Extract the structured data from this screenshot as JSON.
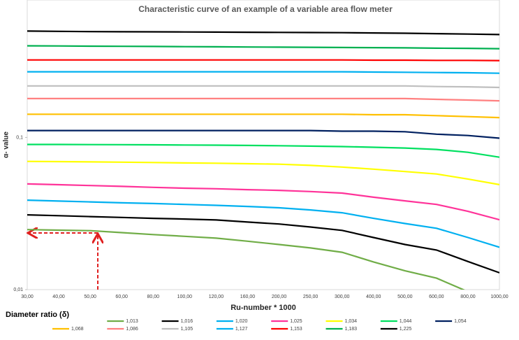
{
  "chart_data": {
    "type": "line",
    "title": "Characteristic curve of an example of a variable area flow meter",
    "x_label": "Ru-number * 1000",
    "y_label": "α- value",
    "legend_title": "Diameter ratio (δ)",
    "log_y": true,
    "categories": [
      "30,00",
      "40,00",
      "50,00",
      "60,00",
      "80,00",
      "100,00",
      "120,00",
      "160,00",
      "200,00",
      "250,00",
      "300,00",
      "400,00",
      "500,00",
      "600,00",
      "800,00",
      "1000,00"
    ],
    "ylim": [
      0.01,
      0.8
    ],
    "yticks": [
      {
        "value": 0.01,
        "label": "0,01"
      },
      {
        "value": 0.1,
        "label": "0,1"
      }
    ],
    "series": [
      {
        "name": "1,013",
        "color": "#70ad47",
        "values": [
          0.0248,
          0.0246,
          0.0244,
          0.0237,
          0.023,
          0.0224,
          0.0218,
          0.0208,
          0.0198,
          0.0188,
          0.0176,
          0.0152,
          0.0133,
          0.0119,
          0.0097,
          null
        ]
      },
      {
        "name": "1,016",
        "color": "#000000",
        "values": [
          0.031,
          0.0306,
          0.0302,
          0.0298,
          0.0294,
          0.0291,
          0.0287,
          0.0278,
          0.027,
          0.0258,
          0.0245,
          0.022,
          0.0198,
          0.0182,
          0.0153,
          0.0129
        ]
      },
      {
        "name": "1,020",
        "color": "#00b0f0",
        "values": [
          0.0387,
          0.0382,
          0.0377,
          0.0372,
          0.0368,
          0.0363,
          0.0358,
          0.0352,
          0.0345,
          0.0334,
          0.032,
          0.0294,
          0.0272,
          0.0253,
          0.022,
          0.019
        ]
      },
      {
        "name": "1,025",
        "color": "#ff3399",
        "values": [
          0.0495,
          0.0489,
          0.0483,
          0.0477,
          0.047,
          0.0464,
          0.046,
          0.0454,
          0.0449,
          0.0441,
          0.0431,
          0.0405,
          0.0383,
          0.0363,
          0.0327,
          0.0288
        ]
      },
      {
        "name": "1,034",
        "color": "#ffff00",
        "values": [
          0.0696,
          0.0694,
          0.0691,
          0.0688,
          0.0684,
          0.068,
          0.0677,
          0.0672,
          0.0667,
          0.0655,
          0.0639,
          0.0619,
          0.0597,
          0.0575,
          0.0533,
          0.049
        ]
      },
      {
        "name": "1,044",
        "color": "#00e060",
        "values": [
          0.0899,
          0.0899,
          0.0897,
          0.0896,
          0.0894,
          0.0892,
          0.089,
          0.0886,
          0.0882,
          0.0877,
          0.0871,
          0.0862,
          0.0852,
          0.0834,
          0.0799,
          0.0742
        ]
      },
      {
        "name": "1,054",
        "color": "#002060",
        "values": [
          0.111,
          0.111,
          0.111,
          0.111,
          0.111,
          0.111,
          0.111,
          0.111,
          0.111,
          0.111,
          0.11,
          0.11,
          0.109,
          0.105,
          0.103,
          0.0989
        ]
      },
      {
        "name": "1,068",
        "color": "#ffc000",
        "values": [
          0.142,
          0.142,
          0.142,
          0.142,
          0.142,
          0.142,
          0.142,
          0.142,
          0.142,
          0.142,
          0.142,
          0.141,
          0.141,
          0.139,
          0.137,
          0.135
        ]
      },
      {
        "name": "1,086",
        "color": "#ff8080",
        "values": [
          0.18,
          0.18,
          0.18,
          0.18,
          0.18,
          0.18,
          0.18,
          0.18,
          0.18,
          0.18,
          0.18,
          0.18,
          0.18,
          0.178,
          0.176,
          0.174
        ]
      },
      {
        "name": "1,105",
        "color": "#bfbfbf",
        "values": [
          0.218,
          0.218,
          0.218,
          0.218,
          0.218,
          0.218,
          0.218,
          0.218,
          0.218,
          0.218,
          0.218,
          0.218,
          0.218,
          0.216,
          0.215,
          0.213
        ]
      },
      {
        "name": "1,127",
        "color": "#00b0f0",
        "values": [
          0.27,
          0.27,
          0.27,
          0.27,
          0.27,
          0.27,
          0.27,
          0.27,
          0.27,
          0.27,
          0.27,
          0.269,
          0.268,
          0.267,
          0.266,
          0.264
        ]
      },
      {
        "name": "1,153",
        "color": "#ff0000",
        "values": [
          0.323,
          0.323,
          0.323,
          0.323,
          0.323,
          0.323,
          0.323,
          0.323,
          0.323,
          0.323,
          0.323,
          0.322,
          0.322,
          0.321,
          0.321,
          0.32
        ]
      },
      {
        "name": "1,183",
        "color": "#00b050",
        "values": [
          0.4,
          0.399,
          0.398,
          0.397,
          0.396,
          0.395,
          0.394,
          0.393,
          0.392,
          0.391,
          0.39,
          0.389,
          0.388,
          0.386,
          0.385,
          0.383
        ]
      },
      {
        "name": "1,225",
        "color": "#000000",
        "values": [
          0.5,
          0.498,
          0.496,
          0.495,
          0.494,
          0.493,
          0.492,
          0.491,
          0.49,
          0.489,
          0.488,
          0.486,
          0.484,
          0.481,
          0.478,
          0.474
        ]
      }
    ]
  }
}
